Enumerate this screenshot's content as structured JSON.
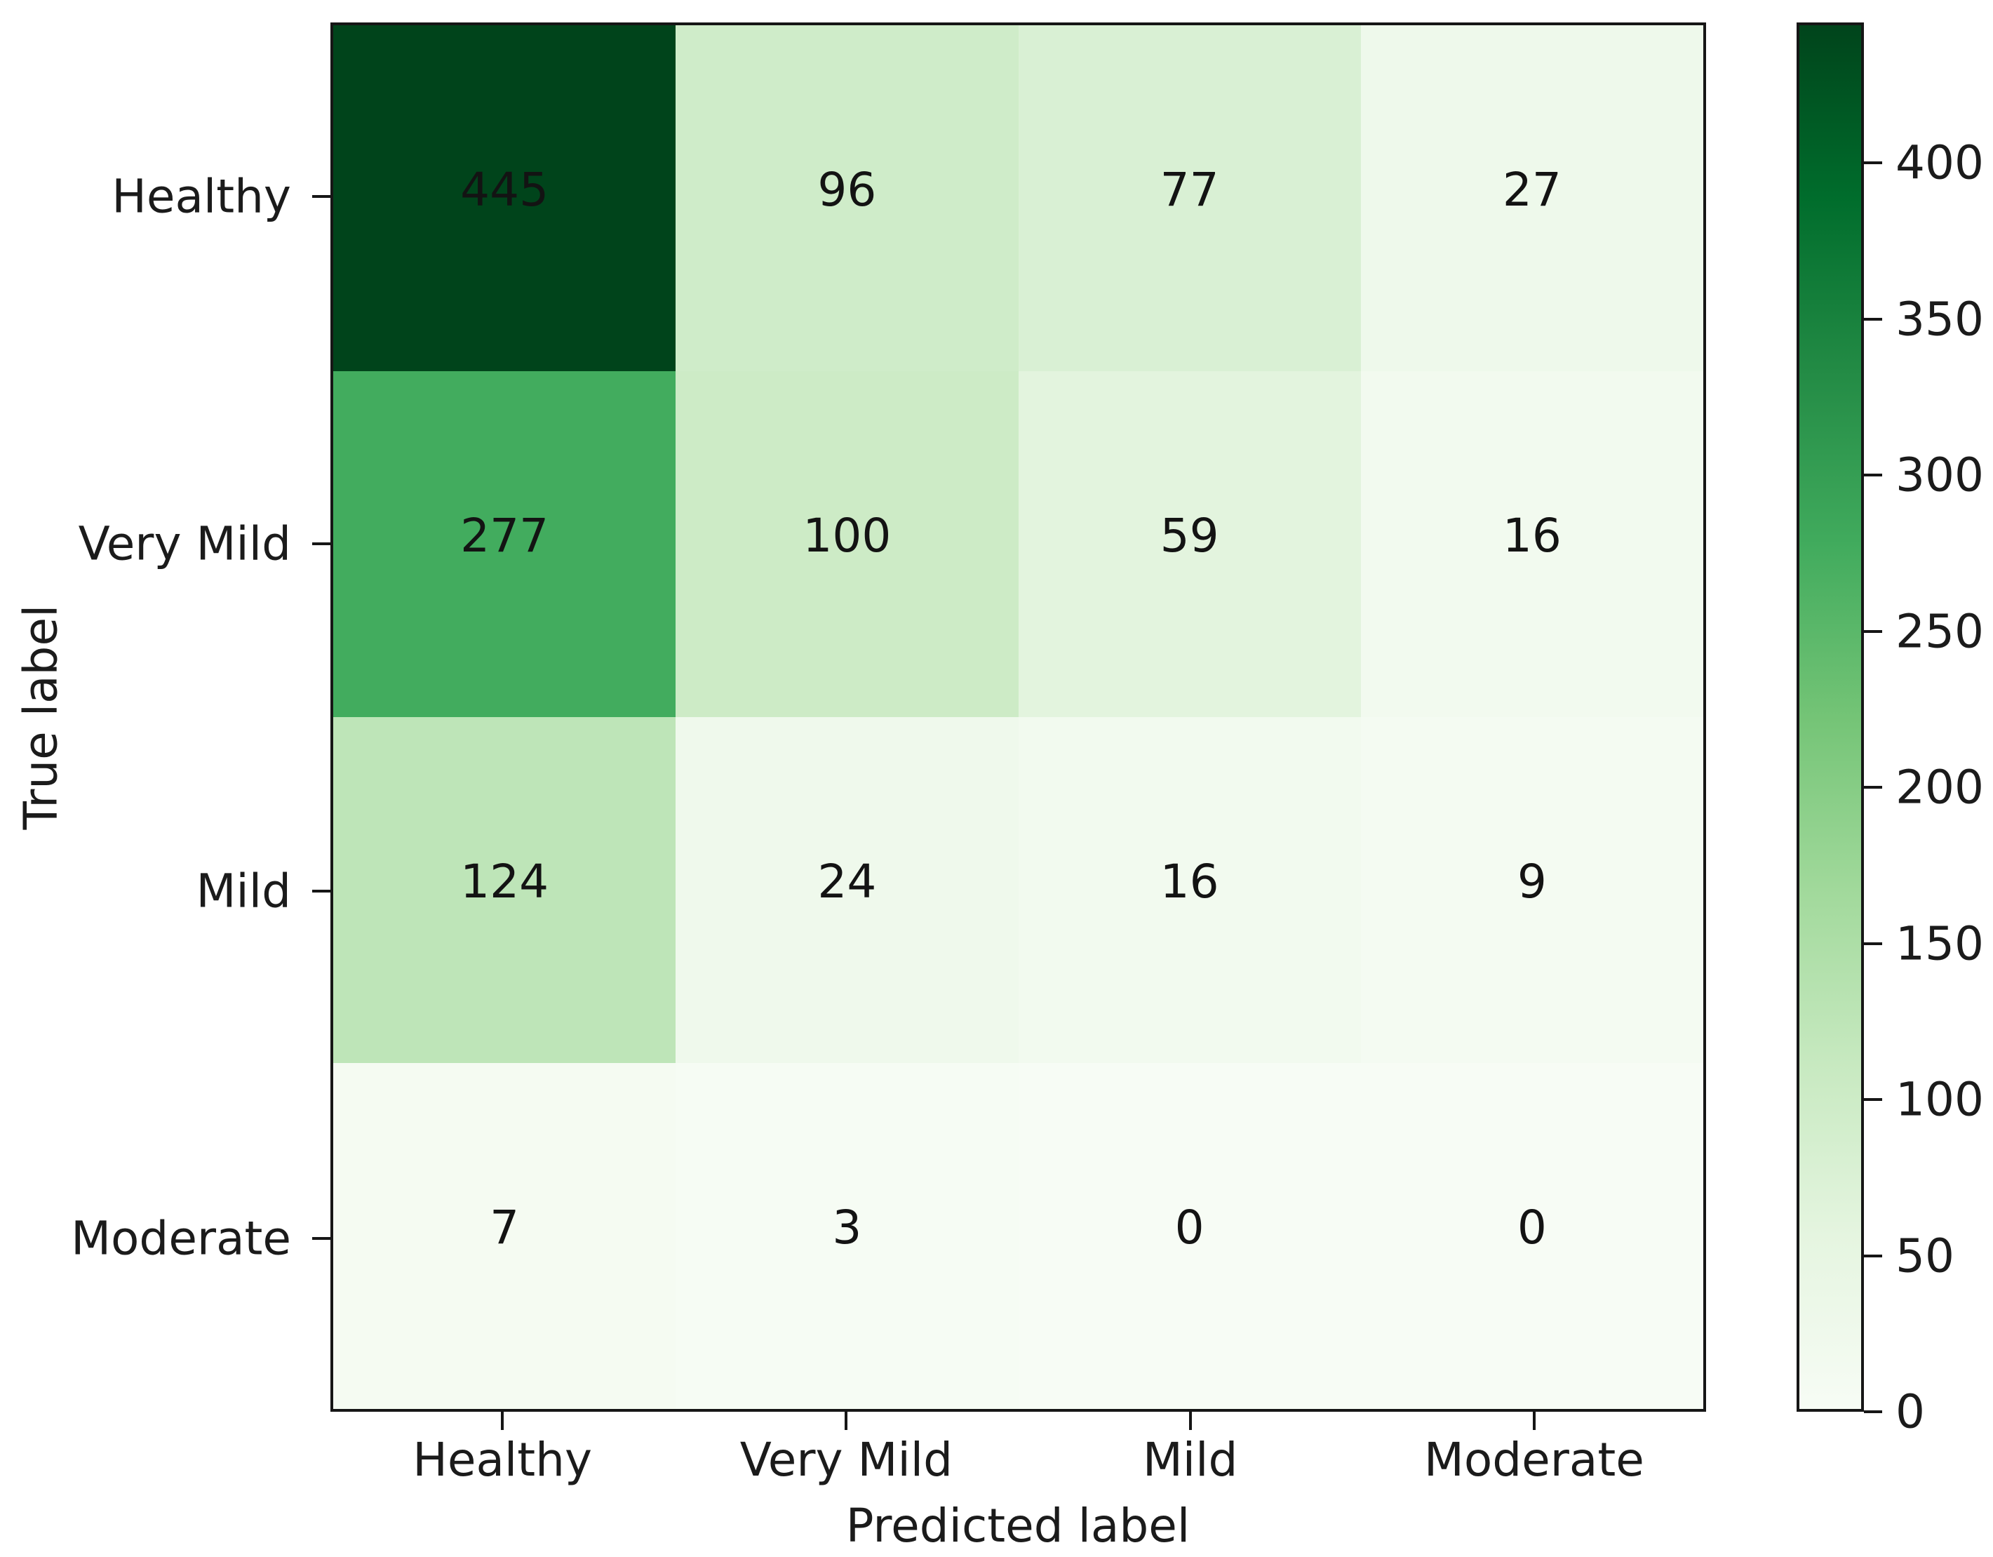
{
  "figure": {
    "background": "#ffffff"
  },
  "chart_data": {
    "type": "heatmap",
    "title": "",
    "xlabel": "Predicted label",
    "ylabel": "True label",
    "x_categories": [
      "Healthy",
      "Very Mild",
      "Mild",
      "Moderate"
    ],
    "y_categories": [
      "Healthy",
      "Very Mild",
      "Mild",
      "Moderate"
    ],
    "matrix": [
      [
        445,
        96,
        77,
        27
      ],
      [
        277,
        100,
        59,
        16
      ],
      [
        124,
        24,
        16,
        9
      ],
      [
        7,
        3,
        0,
        0
      ]
    ],
    "vmin": 0,
    "vmax": 445,
    "grid": false,
    "legend": false,
    "colorbar": {
      "position": "right",
      "ticks": [
        0,
        50,
        100,
        150,
        200,
        250,
        300,
        350,
        400
      ]
    },
    "colormap": {
      "name": "Greens",
      "stops": [
        [
          0.0,
          "#f7fcf5"
        ],
        [
          0.125,
          "#e5f5e0"
        ],
        [
          0.25,
          "#c7e9c0"
        ],
        [
          0.375,
          "#a1d99b"
        ],
        [
          0.5,
          "#74c476"
        ],
        [
          0.625,
          "#41ab5d"
        ],
        [
          0.75,
          "#238b45"
        ],
        [
          0.875,
          "#006d2c"
        ],
        [
          1.0,
          "#00441b"
        ]
      ]
    },
    "annotation_color": "#131313",
    "axis_color": "#161616"
  }
}
